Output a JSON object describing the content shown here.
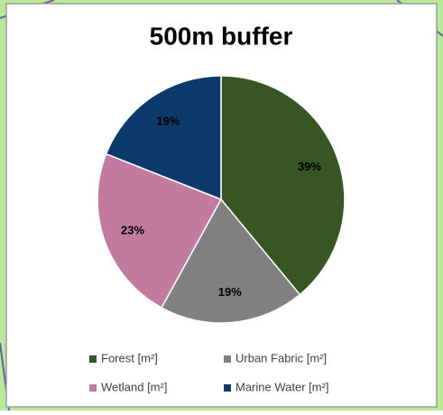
{
  "chart_data": {
    "type": "pie",
    "title": "500m buffer",
    "categories": [
      "Forest [m²]",
      "Urban Fabric [m²]",
      "Wetland [m²]",
      "Marine Water [m²]"
    ],
    "values": [
      39,
      19,
      23,
      19
    ],
    "value_labels": [
      "39%",
      "19%",
      "23%",
      "19%"
    ],
    "colors": [
      "#375623",
      "#808080",
      "#c27b9f",
      "#0c3a6b"
    ],
    "legend": "bottom"
  }
}
